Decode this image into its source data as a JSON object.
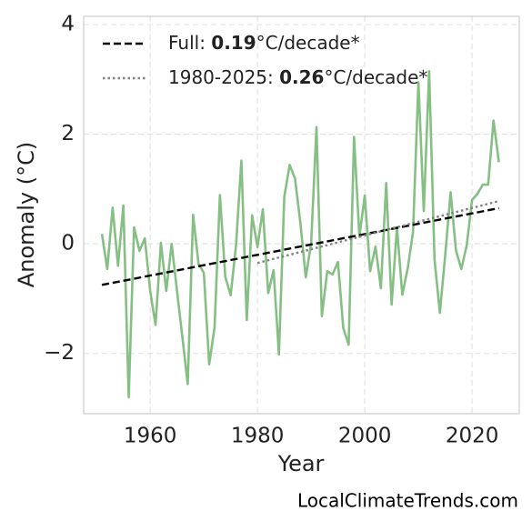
{
  "chart_data": {
    "type": "line",
    "xlabel": "Year",
    "ylabel": "Anomaly (°C)",
    "footer": "LocalClimateTrends.com",
    "xlim": [
      1947.6,
      2028.8
    ],
    "ylim": [
      -3.1,
      4.15
    ],
    "xticks": [
      1960,
      1980,
      2000,
      2020
    ],
    "yticks": [
      {
        "value": -2,
        "label": "−2"
      },
      0,
      2,
      4
    ],
    "grid": true,
    "legend": "upper left",
    "series": [
      {
        "color": "#86bf84",
        "style": "solid",
        "x": [
          1951,
          1952,
          1953,
          1954,
          1955,
          1956,
          1957,
          1958,
          1959,
          1960,
          1961,
          1962,
          1963,
          1964,
          1965,
          1966,
          1967,
          1968,
          1969,
          1970,
          1971,
          1972,
          1973,
          1974,
          1975,
          1976,
          1977,
          1978,
          1979,
          1980,
          1981,
          1982,
          1983,
          1984,
          1985,
          1986,
          1987,
          1988,
          1989,
          1990,
          1991,
          1992,
          1993,
          1994,
          1995,
          1996,
          1997,
          1998,
          1999,
          2000,
          2001,
          2002,
          2003,
          2004,
          2005,
          2006,
          2007,
          2008,
          2009,
          2010,
          2011,
          2012,
          2013,
          2014,
          2015,
          2016,
          2017,
          2018,
          2019,
          2020,
          2021,
          2022,
          2023,
          2024,
          2025
        ],
        "values": [
          0.18,
          -0.46,
          0.66,
          -0.4,
          0.7,
          -2.8,
          0.3,
          -0.13,
          0.1,
          -0.86,
          -1.48,
          0.02,
          -0.86,
          0,
          -0.86,
          -1.7,
          -2.56,
          0.53,
          -0.36,
          -0.53,
          -2.2,
          -1.52,
          0.89,
          -0.6,
          -0.94,
          -0.03,
          1.52,
          -1.39,
          0.52,
          -0.06,
          0.63,
          -0.9,
          -0.48,
          -2.02,
          0.86,
          1.44,
          1.19,
          0.38,
          -0.61,
          0,
          2.13,
          -1.32,
          -0.5,
          -0.56,
          -0.33,
          -1.54,
          -1.84,
          1.95,
          0.13,
          0.88,
          -0.5,
          -0.05,
          -0.81,
          1.11,
          -1.11,
          0.3,
          -0.93,
          -0.45,
          0.22,
          2.95,
          0.6,
          3.15,
          -0.28,
          -1.26,
          -0.2,
          0.94,
          -0.12,
          -0.46,
          -0.03,
          0.8,
          0.91,
          1.08,
          1.08,
          2.25,
          1.49
        ]
      },
      {
        "label": "Full: ",
        "slope": 0.19,
        "unit": "°C/decade*",
        "color": "#000000",
        "style": "dashed",
        "x": [
          1951,
          2025
        ],
        "values": [
          -0.75,
          0.65
        ]
      },
      {
        "label": "1980-2025: ",
        "slope": 0.26,
        "unit": "°C/decade*",
        "color": "#808080",
        "style": "dotted",
        "x": [
          1980,
          2025
        ],
        "values": [
          -0.35,
          0.78
        ]
      }
    ]
  }
}
